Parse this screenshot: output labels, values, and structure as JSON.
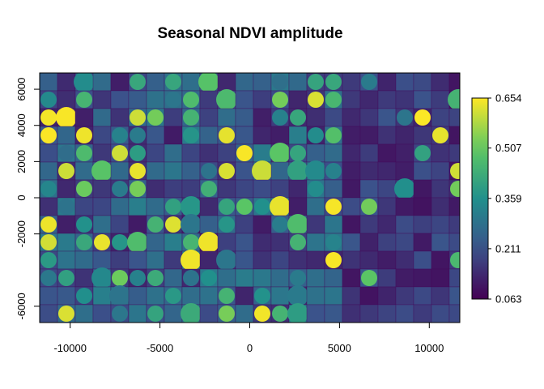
{
  "chart_data": {
    "type": "heatmap",
    "title": "Seasonal NDVI amplitude",
    "xlabel": "",
    "ylabel": "",
    "xlim": [
      -11700,
      11700
    ],
    "ylim": [
      -6900,
      6900
    ],
    "x_ticks": [
      -10000,
      -5000,
      0,
      5000,
      10000
    ],
    "x_tick_labels": [
      "-10000",
      "-5000",
      "0",
      "5000",
      "10000"
    ],
    "y_ticks": [
      -6000,
      -2000,
      0,
      2000,
      4000,
      6000
    ],
    "y_tick_labels": [
      "-6000",
      "-2000",
      "0",
      "2000",
      "4000",
      "6000"
    ],
    "legend": {
      "placement": "right",
      "min": 0.063,
      "max": 0.654,
      "tick_values": [
        0.063,
        0.211,
        0.359,
        0.507,
        0.654
      ],
      "tick_labels": [
        "0.063",
        "0.211",
        "0.359",
        "0.507",
        "0.654"
      ]
    },
    "colormap": [
      "#440154",
      "#3b528b",
      "#21908c",
      "#5dc863",
      "#fde725"
    ]
  }
}
